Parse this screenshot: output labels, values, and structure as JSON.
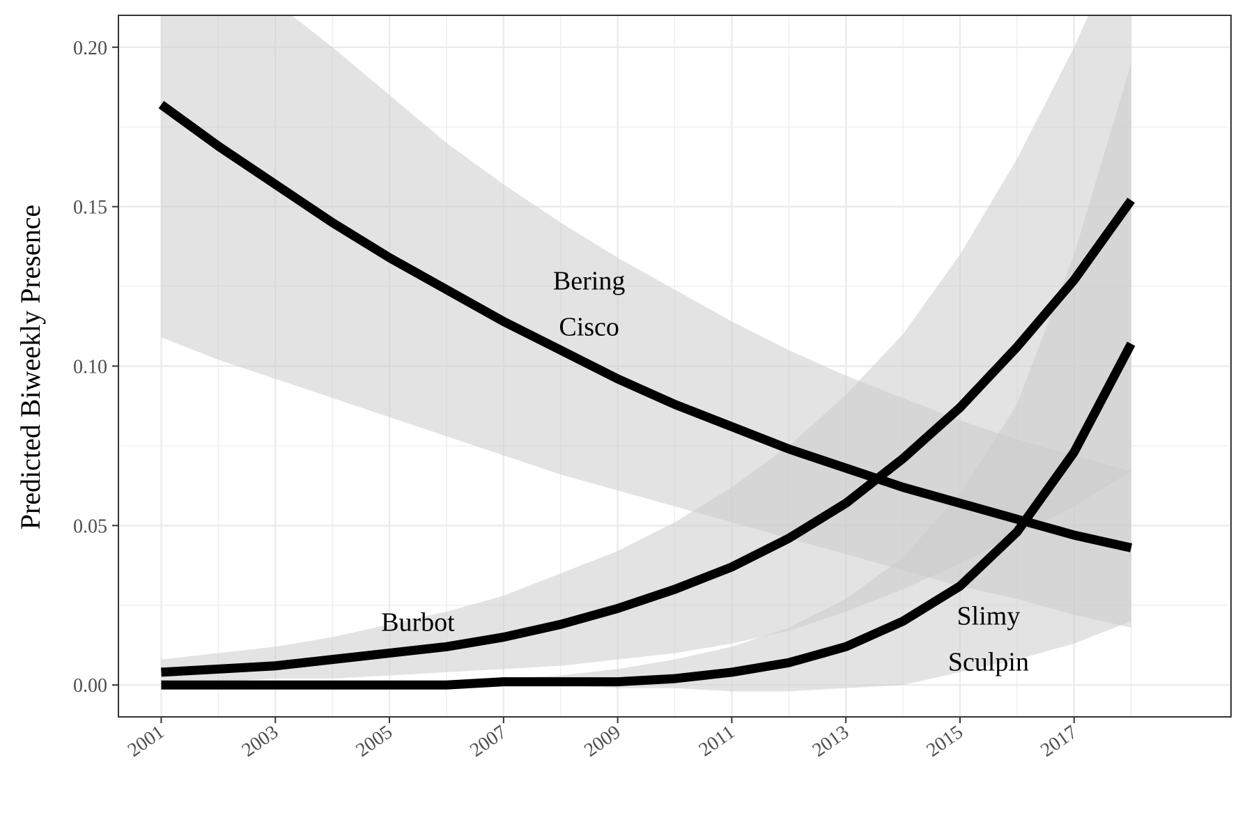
{
  "chart_data": {
    "type": "line",
    "title": "",
    "xlabel": "",
    "ylabel": "Predicted Biweekly Presence",
    "xlim": [
      2000.25,
      2019.75
    ],
    "ylim": [
      -0.01,
      0.21
    ],
    "x_ticks": [
      2001,
      2003,
      2005,
      2007,
      2009,
      2011,
      2013,
      2015,
      2017
    ],
    "x_tick_labels": [
      "2001",
      "2003",
      "2005",
      "2007",
      "2009",
      "2011",
      "2013",
      "2015",
      "2017"
    ],
    "y_ticks": [
      0.0,
      0.05,
      0.1,
      0.15,
      0.2
    ],
    "y_tick_labels": [
      "0.00",
      "0.05",
      "0.10",
      "0.15",
      "0.20"
    ],
    "grid": true,
    "legend": "none",
    "colors": {
      "line": "#000000",
      "ribbon": "#cccccc",
      "grid": "#ebebeb",
      "border": "#333333"
    },
    "x": [
      2001,
      2002,
      2003,
      2004,
      2005,
      2006,
      2007,
      2008,
      2009,
      2010,
      2011,
      2012,
      2013,
      2014,
      2015,
      2016,
      2017,
      2018
    ],
    "series": [
      {
        "name": "Bering Cisco",
        "label_lines": [
          "Bering",
          "Cisco"
        ],
        "label_pos": [
          2008.5,
          0.124
        ],
        "values": [
          0.182,
          0.169,
          0.157,
          0.145,
          0.134,
          0.124,
          0.114,
          0.105,
          0.096,
          0.088,
          0.081,
          0.074,
          0.068,
          0.062,
          0.057,
          0.052,
          0.047,
          0.043
        ],
        "lower": [
          0.109,
          0.102,
          0.096,
          0.09,
          0.084,
          0.078,
          0.072,
          0.066,
          0.061,
          0.056,
          0.051,
          0.046,
          0.041,
          0.036,
          0.031,
          0.027,
          0.022,
          0.018
        ],
        "upper": [
          0.225,
          0.222,
          0.214,
          0.2,
          0.185,
          0.17,
          0.157,
          0.145,
          0.134,
          0.124,
          0.114,
          0.105,
          0.097,
          0.09,
          0.083,
          0.077,
          0.072,
          0.067
        ]
      },
      {
        "name": "Burbot",
        "label_lines": [
          "Burbot"
        ],
        "label_pos": [
          2005.5,
          0.017
        ],
        "values": [
          0.004,
          0.005,
          0.006,
          0.008,
          0.01,
          0.012,
          0.015,
          0.019,
          0.024,
          0.03,
          0.037,
          0.046,
          0.057,
          0.071,
          0.087,
          0.106,
          0.127,
          0.152
        ],
        "lower": [
          0.001,
          0.001,
          0.002,
          0.002,
          0.003,
          0.004,
          0.005,
          0.006,
          0.008,
          0.01,
          0.013,
          0.017,
          0.023,
          0.03,
          0.038,
          0.047,
          0.056,
          0.067
        ],
        "upper": [
          0.008,
          0.01,
          0.012,
          0.015,
          0.019,
          0.023,
          0.028,
          0.035,
          0.042,
          0.051,
          0.062,
          0.075,
          0.091,
          0.11,
          0.135,
          0.165,
          0.2,
          0.24
        ]
      },
      {
        "name": "Slimy Sculpin",
        "label_lines": [
          "Slimy",
          "Sculpin"
        ],
        "label_pos": [
          2015.5,
          0.019
        ],
        "values": [
          0.0,
          0.0,
          0.0,
          0.0,
          0.0,
          0.0,
          0.001,
          0.001,
          0.001,
          0.002,
          0.004,
          0.007,
          0.012,
          0.02,
          0.031,
          0.048,
          0.073,
          0.107
        ],
        "lower": [
          0.0,
          0.0,
          0.0,
          0.0,
          0.0,
          0.0,
          0.0,
          0.0,
          -0.001,
          -0.001,
          -0.002,
          -0.002,
          -0.001,
          0.0,
          0.004,
          0.008,
          0.013,
          0.02
        ],
        "upper": [
          0.0,
          0.0,
          0.0,
          0.0,
          0.001,
          0.001,
          0.002,
          0.003,
          0.005,
          0.008,
          0.012,
          0.018,
          0.027,
          0.04,
          0.06,
          0.088,
          0.135,
          0.195
        ]
      }
    ]
  }
}
